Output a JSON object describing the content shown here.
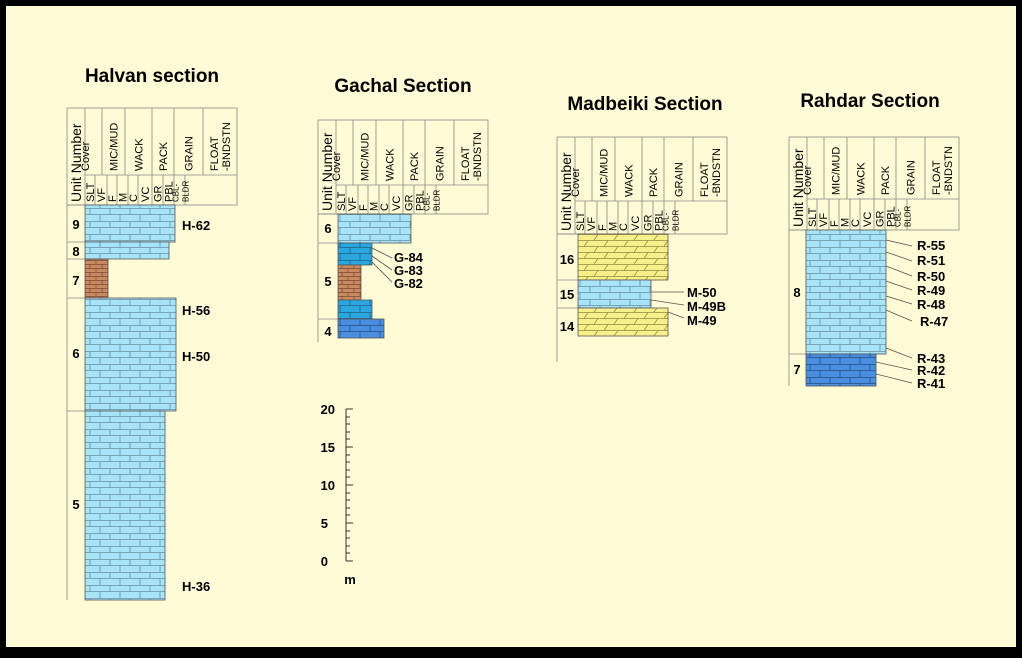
{
  "colors": {
    "background": "#fffbd6",
    "limestone_light": "#a8e4f8",
    "limestone_mid": "#2aa6e0",
    "limestone_dark": "#4a8ee0",
    "sandstone": "#c98a62",
    "dolomite_yellow": "#f7ef8a",
    "line": "#555555"
  },
  "header_labels": {
    "unit_number": "Unit Number",
    "top": [
      "Cover",
      "MIC/MUD",
      "WACK",
      "PACK",
      "GRAIN",
      "FLOAT -BNDSTN"
    ],
    "bottom": [
      "SLT",
      "VF",
      "F",
      "M",
      "C",
      "VC",
      "GR",
      "PBL",
      "CBL- BLDR"
    ]
  },
  "sections": [
    {
      "id": "halvan",
      "title": "Halvan section",
      "units": [
        "9",
        "8",
        "7",
        "6",
        "5"
      ],
      "samples": [
        "H-62",
        "H-56",
        "H-50",
        "H-36"
      ]
    },
    {
      "id": "gachal",
      "title": "Gachal Section",
      "units": [
        "6",
        "5",
        "4"
      ],
      "samples": [
        "G-84",
        "G-83",
        "G-82"
      ]
    },
    {
      "id": "madbeiki",
      "title": "Madbeiki Section",
      "units": [
        "16",
        "15",
        "14"
      ],
      "samples": [
        "M-50",
        "M-49B",
        "M-49"
      ]
    },
    {
      "id": "rahdar",
      "title": "Rahdar Section",
      "units": [
        "8",
        "7"
      ],
      "samples": [
        "R-55",
        "R-51",
        "R-50",
        "R-49",
        "R-48",
        "R-47",
        "R-43",
        "R-42",
        "R-41"
      ]
    }
  ],
  "scale_bar": {
    "ticks": [
      "20",
      "15",
      "10",
      "5",
      "0"
    ],
    "unit": "m"
  }
}
